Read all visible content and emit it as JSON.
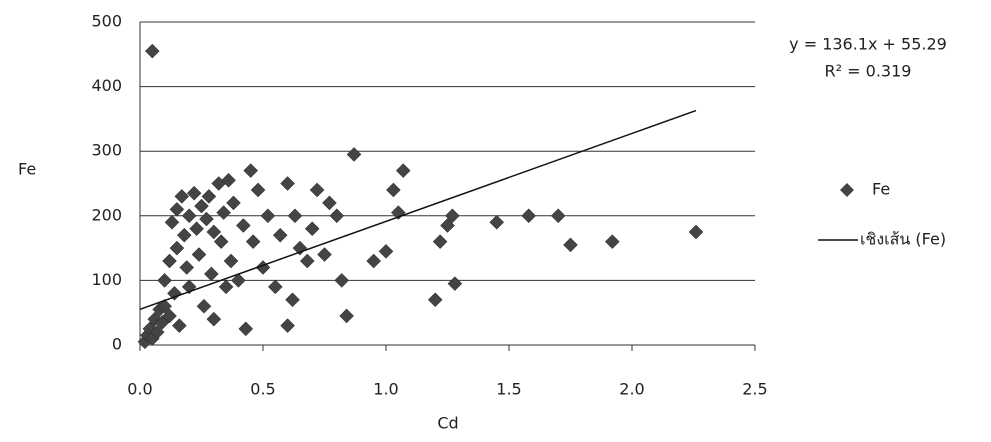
{
  "chart_data": {
    "type": "scatter",
    "x_label": "Cd",
    "y_label": "Fe",
    "xlim": [
      0,
      2.5
    ],
    "ylim": [
      0,
      500
    ],
    "xticks": [
      {
        "value": 0,
        "label": "0.0"
      },
      {
        "value": 0.5,
        "label": "0.5"
      },
      {
        "value": 1,
        "label": "1.0"
      },
      {
        "value": 1.5,
        "label": "1.5"
      },
      {
        "value": 2,
        "label": "2.0"
      },
      {
        "value": 2.5,
        "label": "2.5"
      }
    ],
    "yticks": [
      0,
      100,
      200,
      300,
      400,
      500
    ],
    "grid": true,
    "series": [
      {
        "name": "Fe",
        "color": "#444444",
        "x": [
          0.05,
          0.02,
          0.03,
          0.04,
          0.05,
          0.06,
          0.07,
          0.08,
          0.09,
          0.1,
          0.1,
          0.12,
          0.12,
          0.13,
          0.14,
          0.15,
          0.15,
          0.16,
          0.17,
          0.18,
          0.19,
          0.2,
          0.2,
          0.22,
          0.23,
          0.24,
          0.25,
          0.26,
          0.27,
          0.28,
          0.29,
          0.3,
          0.3,
          0.32,
          0.33,
          0.34,
          0.35,
          0.36,
          0.37,
          0.38,
          0.4,
          0.42,
          0.43,
          0.45,
          0.46,
          0.48,
          0.5,
          0.52,
          0.55,
          0.57,
          0.6,
          0.6,
          0.62,
          0.63,
          0.65,
          0.68,
          0.7,
          0.72,
          0.75,
          0.77,
          0.8,
          0.82,
          0.84,
          0.87,
          0.95,
          1.0,
          1.03,
          1.05,
          1.07,
          1.2,
          1.22,
          1.25,
          1.27,
          1.28,
          1.45,
          1.58,
          1.7,
          1.75,
          1.92,
          2.26
        ],
        "values": [
          455,
          5,
          15,
          25,
          10,
          40,
          20,
          55,
          35,
          100,
          60,
          45,
          130,
          190,
          80,
          210,
          150,
          30,
          230,
          170,
          120,
          200,
          90,
          235,
          180,
          140,
          215,
          60,
          195,
          230,
          110,
          175,
          40,
          250,
          160,
          205,
          90,
          255,
          130,
          220,
          100,
          185,
          25,
          270,
          160,
          240,
          120,
          200,
          90,
          170,
          30,
          250,
          70,
          200,
          150,
          130,
          180,
          240,
          140,
          220,
          200,
          100,
          45,
          295,
          130,
          145,
          240,
          205,
          270,
          70,
          160,
          185,
          200,
          95,
          190,
          200,
          200,
          155,
          160,
          175
        ]
      }
    ],
    "trendline": {
      "name": "เชิงเส้น (Fe)",
      "color": "#111111",
      "slope": 136.1,
      "intercept": 55.29,
      "x": [
        0,
        2.26
      ],
      "equation": "y = 136.1x + 55.29",
      "r_squared": "R² = 0.319"
    }
  }
}
